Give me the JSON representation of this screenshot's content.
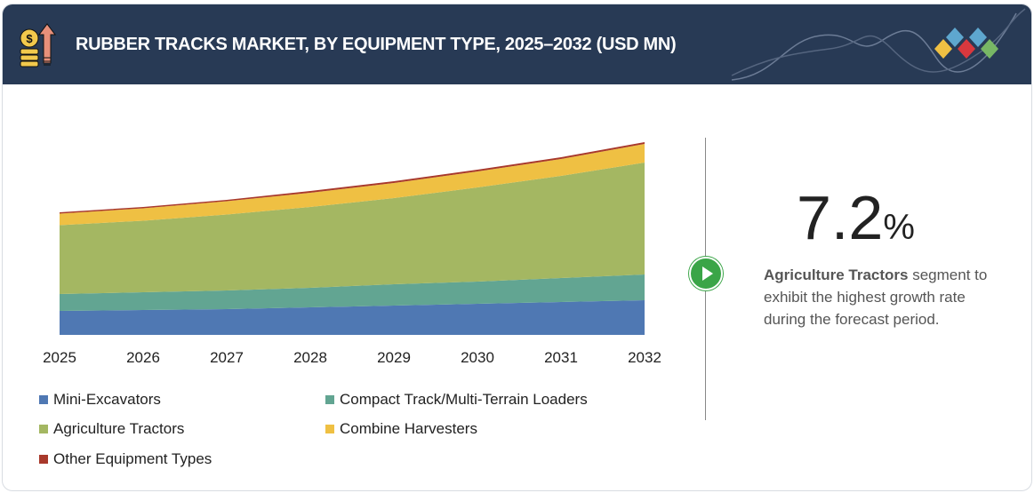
{
  "header": {
    "title": "RUBBER TRACKS MARKET, BY EQUIPMENT TYPE, 2025–2032 (USD MN)",
    "icon": "coins-arrow-up-icon",
    "logo": "diamond-logo"
  },
  "chart_data": {
    "type": "area",
    "stacked": true,
    "categories": [
      "2025",
      "2026",
      "2027",
      "2028",
      "2029",
      "2030",
      "2031",
      "2032"
    ],
    "ylim": [
      0,
      230
    ],
    "y_axis_shown": false,
    "grid": false,
    "legend_position": "bottom",
    "series": [
      {
        "name": "Mini-Excavators",
        "color": "#4f78b3",
        "values": [
          27,
          28,
          29,
          31,
          33,
          35,
          37,
          39
        ]
      },
      {
        "name": "Compact Track/Multi-Terrain Loaders",
        "color": "#62a592",
        "values": [
          19,
          20,
          21,
          22,
          24,
          25,
          27,
          29
        ]
      },
      {
        "name": "Agriculture Tractors",
        "color": "#a4b762",
        "values": [
          77.5,
          80.5,
          85.5,
          91,
          97,
          106,
          115,
          126
        ]
      },
      {
        "name": "Combine Harvesters",
        "color": "#efc043",
        "values": [
          13,
          14,
          15,
          16,
          17,
          18,
          19,
          21
        ]
      },
      {
        "name": "Other Equipment Types",
        "color": "#a8392b",
        "values": [
          1.5,
          1.5,
          1.5,
          2,
          2,
          2,
          2,
          2
        ]
      }
    ]
  },
  "highlight": {
    "value": "7.2",
    "unit": "%",
    "segment": "Agriculture Tractors",
    "text": " segment to exhibit the highest growth rate during the forecast period.",
    "icon": "play-icon",
    "accent": "#3aa547"
  }
}
